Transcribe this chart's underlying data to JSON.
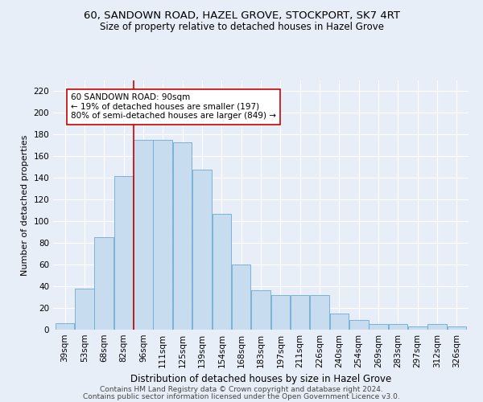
{
  "title_line1": "60, SANDOWN ROAD, HAZEL GROVE, STOCKPORT, SK7 4RT",
  "title_line2": "Size of property relative to detached houses in Hazel Grove",
  "xlabel": "Distribution of detached houses by size in Hazel Grove",
  "ylabel": "Number of detached properties",
  "footer_line1": "Contains HM Land Registry data © Crown copyright and database right 2024.",
  "footer_line2": "Contains public sector information licensed under the Open Government Licence v3.0.",
  "categories": [
    "39sqm",
    "53sqm",
    "68sqm",
    "82sqm",
    "96sqm",
    "111sqm",
    "125sqm",
    "139sqm",
    "154sqm",
    "168sqm",
    "183sqm",
    "197sqm",
    "211sqm",
    "226sqm",
    "240sqm",
    "254sqm",
    "269sqm",
    "283sqm",
    "297sqm",
    "312sqm",
    "326sqm"
  ],
  "values": [
    6,
    38,
    85,
    142,
    175,
    175,
    173,
    148,
    107,
    60,
    36,
    32,
    32,
    32,
    15,
    9,
    5,
    5,
    3,
    5,
    3
  ],
  "bar_color": "#c8dcf0",
  "bar_edge_color": "#6aaad4",
  "vline_color": "#cc0000",
  "annotation_text": "60 SANDOWN ROAD: 90sqm\n← 19% of detached houses are smaller (197)\n80% of semi-detached houses are larger (849) →",
  "annotation_box_color": "white",
  "annotation_border_color": "#cc0000",
  "ylim": [
    0,
    230
  ],
  "yticks": [
    0,
    20,
    40,
    60,
    80,
    100,
    120,
    140,
    160,
    180,
    200,
    220
  ],
  "background_color": "#e8eef8",
  "grid_color": "#ffffff",
  "title_fontsize": 9.5,
  "subtitle_fontsize": 8.5,
  "ylabel_fontsize": 8,
  "xlabel_fontsize": 8.5,
  "tick_fontsize": 7.5,
  "annotation_fontsize": 7.5,
  "footer_fontsize": 6.5
}
